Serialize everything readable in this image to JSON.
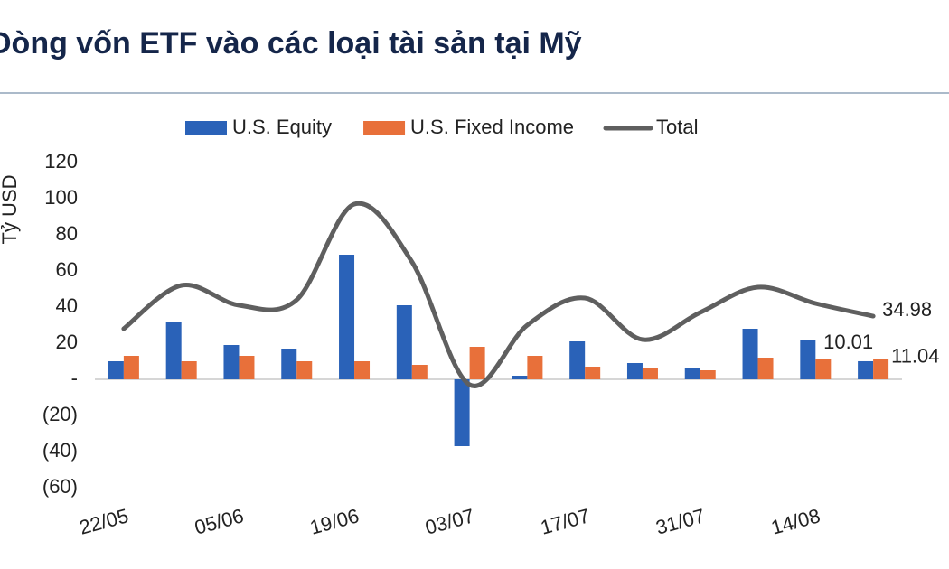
{
  "chart_data": {
    "type": "bar-line",
    "title": "Dòng vốn ETF vào các loại tài sản tại Mỹ",
    "y_label": "Tỷ USD",
    "categories": [
      "22/05",
      null,
      "05/06",
      null,
      "19/06",
      null,
      "03/07",
      null,
      "17/07",
      null,
      "31/07",
      null,
      "14/08",
      null
    ],
    "series": [
      {
        "name": "U.S. Equity",
        "color": "#2a62b8",
        "kind": "bar",
        "values": [
          10,
          32,
          19,
          17,
          69,
          41,
          -37,
          2,
          21,
          9,
          6,
          28,
          22,
          10.01
        ]
      },
      {
        "name": "U.S. Fixed Income",
        "color": "#e8703a",
        "kind": "bar",
        "values": [
          13,
          10,
          13,
          10,
          10,
          8,
          18,
          13,
          7,
          6,
          5,
          12,
          11,
          11.04
        ]
      },
      {
        "name": "Total",
        "color": "#5f5f5f",
        "kind": "line",
        "values": [
          28,
          52,
          41,
          44,
          97,
          65,
          -3,
          30,
          45,
          22,
          37,
          51,
          42,
          34.98
        ]
      }
    ],
    "ylim": [
      -60,
      120
    ],
    "yticks": [
      {
        "value": -60,
        "label": "(60)"
      },
      {
        "value": -40,
        "label": "(40)"
      },
      {
        "value": -20,
        "label": "(20)"
      },
      {
        "value": 0,
        "label": "-"
      },
      20,
      40,
      60,
      80,
      100,
      120
    ]
  }
}
